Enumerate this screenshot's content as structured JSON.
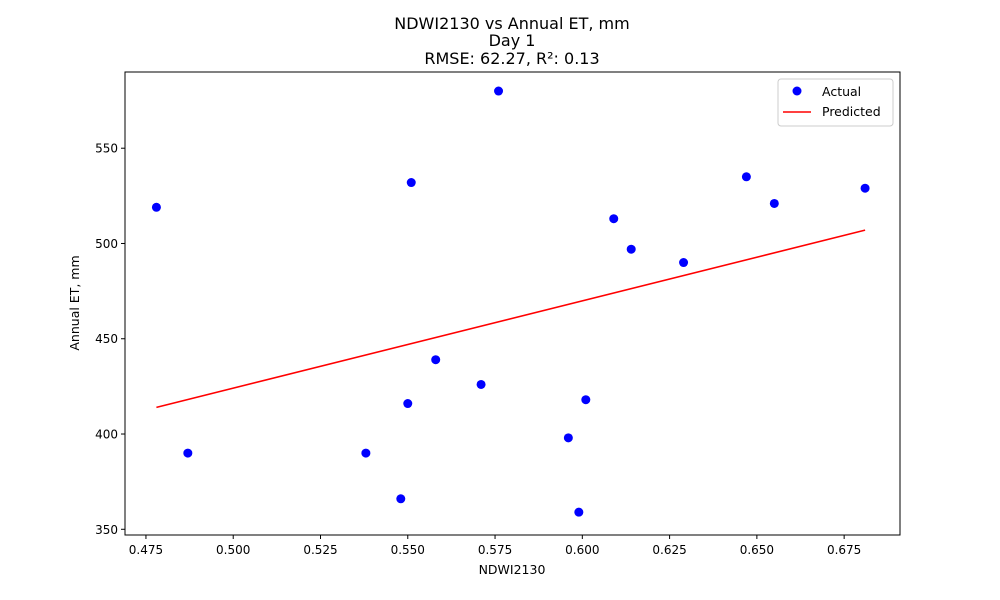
{
  "chart_data": {
    "type": "scatter",
    "title_lines": [
      "NDWI2130 vs Annual ET, mm",
      "Day 1",
      "RMSE: 62.27, R²: 0.13"
    ],
    "xlabel": "NDWI2130",
    "ylabel": "Annual ET, mm",
    "xlim": [
      0.469,
      0.691
    ],
    "ylim": [
      347,
      590
    ],
    "xticks": [
      0.475,
      0.5,
      0.525,
      0.55,
      0.575,
      0.6,
      0.625,
      0.65,
      0.675
    ],
    "xtick_labels": [
      "0.475",
      "0.500",
      "0.525",
      "0.550",
      "0.575",
      "0.600",
      "0.625",
      "0.650",
      "0.675"
    ],
    "yticks": [
      350,
      400,
      450,
      500,
      550
    ],
    "ytick_labels": [
      "350",
      "400",
      "450",
      "500",
      "550"
    ],
    "grid": false,
    "legend_position": "top-right",
    "series": [
      {
        "name": "Actual",
        "kind": "scatter",
        "color": "#0000ff",
        "points": [
          [
            0.478,
            519
          ],
          [
            0.487,
            390
          ],
          [
            0.538,
            390
          ],
          [
            0.548,
            366
          ],
          [
            0.55,
            416
          ],
          [
            0.551,
            532
          ],
          [
            0.558,
            439
          ],
          [
            0.571,
            426
          ],
          [
            0.576,
            580
          ],
          [
            0.596,
            398
          ],
          [
            0.599,
            359
          ],
          [
            0.601,
            418
          ],
          [
            0.609,
            513
          ],
          [
            0.614,
            497
          ],
          [
            0.629,
            490
          ],
          [
            0.647,
            535
          ],
          [
            0.655,
            521
          ],
          [
            0.681,
            529
          ]
        ]
      },
      {
        "name": "Predicted",
        "kind": "line",
        "color": "#ff0000",
        "points": [
          [
            0.478,
            414
          ],
          [
            0.681,
            507
          ]
        ]
      }
    ]
  }
}
